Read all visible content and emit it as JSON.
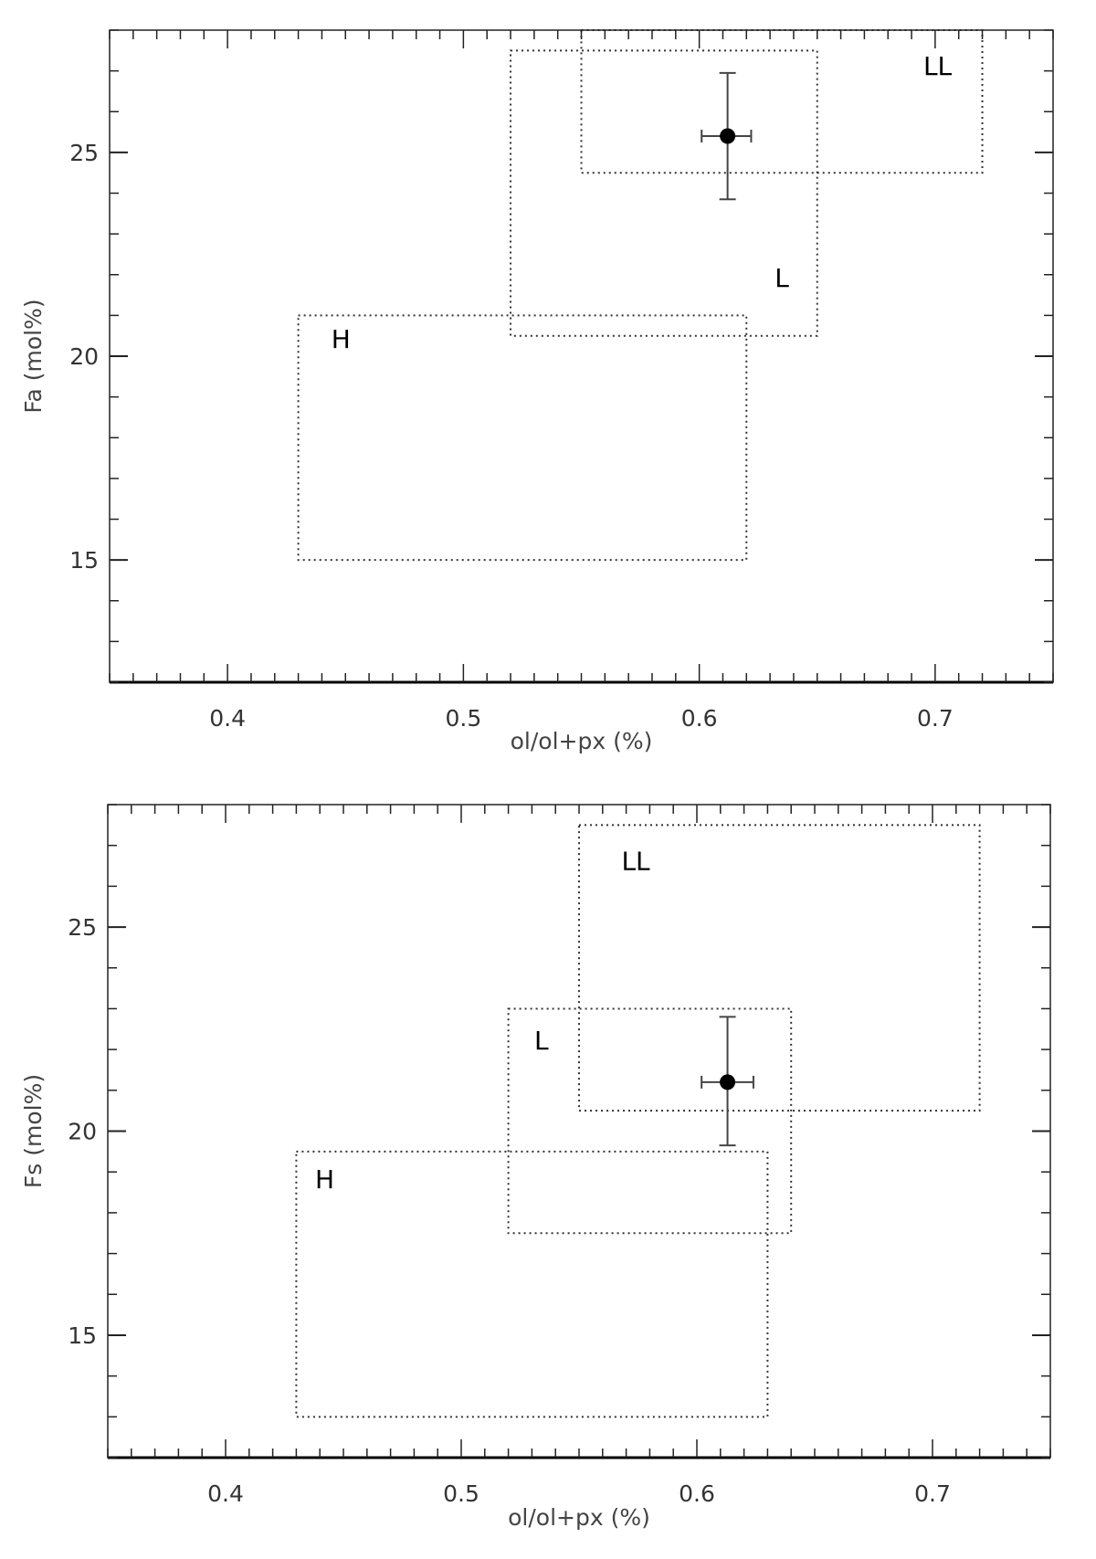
{
  "chart_data": [
    {
      "type": "scatter",
      "xlabel": "ol/ol+px (%)",
      "ylabel": "Fa (mol%)",
      "xlim": [
        0.35,
        0.75
      ],
      "ylim": [
        12,
        28
      ],
      "xticks": [
        "0.4",
        "0.5",
        "0.6",
        "0.7"
      ],
      "yticks": [
        "15",
        "20",
        "25"
      ],
      "grid": false,
      "regions": [
        {
          "label": "H",
          "x": [
            0.43,
            0.62
          ],
          "y": [
            15,
            21
          ]
        },
        {
          "label": "L",
          "x": [
            0.52,
            0.65
          ],
          "y": [
            20.5,
            27.5
          ]
        },
        {
          "label": "LL",
          "x": [
            0.55,
            0.72
          ],
          "y": [
            24.5,
            28
          ]
        }
      ],
      "points": [
        {
          "x": 0.612,
          "y": 25.4,
          "xerr": [
            0.601,
            0.622
          ],
          "yerr": [
            23.85,
            26.95
          ]
        }
      ]
    },
    {
      "type": "scatter",
      "xlabel": "ol/ol+px (%)",
      "ylabel": "Fs (mol%)",
      "xlim": [
        0.35,
        0.75
      ],
      "ylim": [
        12,
        28
      ],
      "xticks": [
        "0.4",
        "0.5",
        "0.6",
        "0.7"
      ],
      "yticks": [
        "15",
        "20",
        "25"
      ],
      "grid": false,
      "regions": [
        {
          "label": "H",
          "x": [
            0.43,
            0.63
          ],
          "y": [
            13,
            19.5
          ]
        },
        {
          "label": "L",
          "x": [
            0.52,
            0.64
          ],
          "y": [
            17.5,
            23
          ]
        },
        {
          "label": "LL",
          "x": [
            0.55,
            0.72
          ],
          "y": [
            20.5,
            27.5
          ]
        }
      ],
      "points": [
        {
          "x": 0.613,
          "y": 21.2,
          "xerr": [
            0.602,
            0.624
          ],
          "yerr": [
            19.65,
            22.8
          ]
        }
      ]
    }
  ]
}
